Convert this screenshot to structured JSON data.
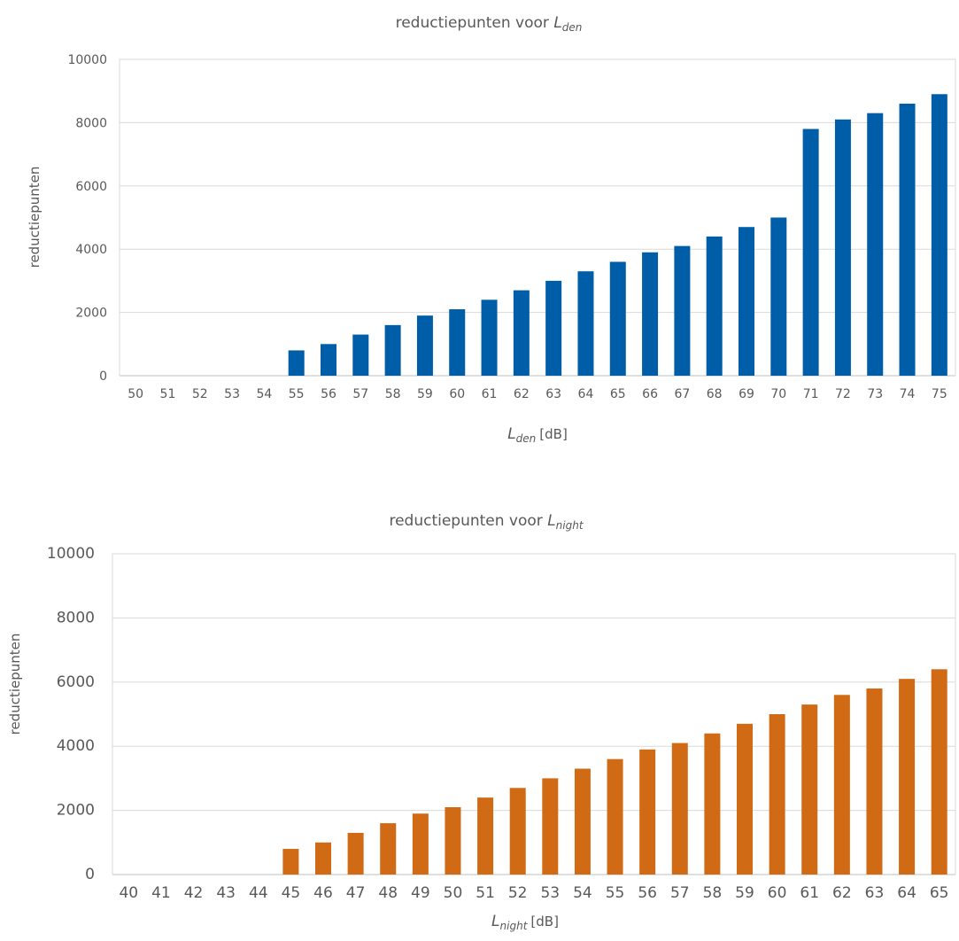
{
  "chart_data": [
    {
      "type": "bar",
      "title_prefix": "reductiepunten voor ",
      "title_symbol": "L",
      "title_subscript": "den",
      "xlabel_symbol": "L",
      "xlabel_subscript": "den",
      "xlabel_unit": "[dB]",
      "ylabel": "reductiepunten",
      "ylim": [
        0,
        10000
      ],
      "yticks": [
        0,
        2000,
        4000,
        6000,
        8000,
        10000
      ],
      "grid": true,
      "color": "#005DA8",
      "categories": [
        "50",
        "51",
        "52",
        "53",
        "54",
        "55",
        "56",
        "57",
        "58",
        "59",
        "60",
        "61",
        "62",
        "63",
        "64",
        "65",
        "66",
        "67",
        "68",
        "69",
        "70",
        "71",
        "72",
        "73",
        "74",
        "75"
      ],
      "values": [
        0,
        0,
        0,
        0,
        0,
        800,
        1000,
        1300,
        1600,
        1900,
        2100,
        2400,
        2700,
        3000,
        3300,
        3600,
        3900,
        4100,
        4400,
        4700,
        5000,
        7800,
        8100,
        8300,
        8600,
        8900
      ]
    },
    {
      "type": "bar",
      "title_prefix": "reductiepunten voor ",
      "title_symbol": "L",
      "title_subscript": "night",
      "xlabel_symbol": "L",
      "xlabel_subscript": "night",
      "xlabel_unit": "[dB]",
      "ylabel": "reductiepunten",
      "ylim": [
        0,
        10000
      ],
      "yticks": [
        0,
        2000,
        4000,
        6000,
        8000,
        10000
      ],
      "grid": true,
      "color": "#D06A14",
      "categories": [
        "40",
        "41",
        "42",
        "43",
        "44",
        "45",
        "46",
        "47",
        "48",
        "49",
        "50",
        "51",
        "52",
        "53",
        "54",
        "55",
        "56",
        "57",
        "58",
        "59",
        "60",
        "61",
        "62",
        "63",
        "64",
        "65"
      ],
      "values": [
        0,
        0,
        0,
        0,
        0,
        800,
        1000,
        1300,
        1600,
        1900,
        2100,
        2400,
        2700,
        3000,
        3300,
        3600,
        3900,
        4100,
        4400,
        4700,
        5000,
        5300,
        5600,
        5800,
        6100,
        6400
      ]
    }
  ]
}
